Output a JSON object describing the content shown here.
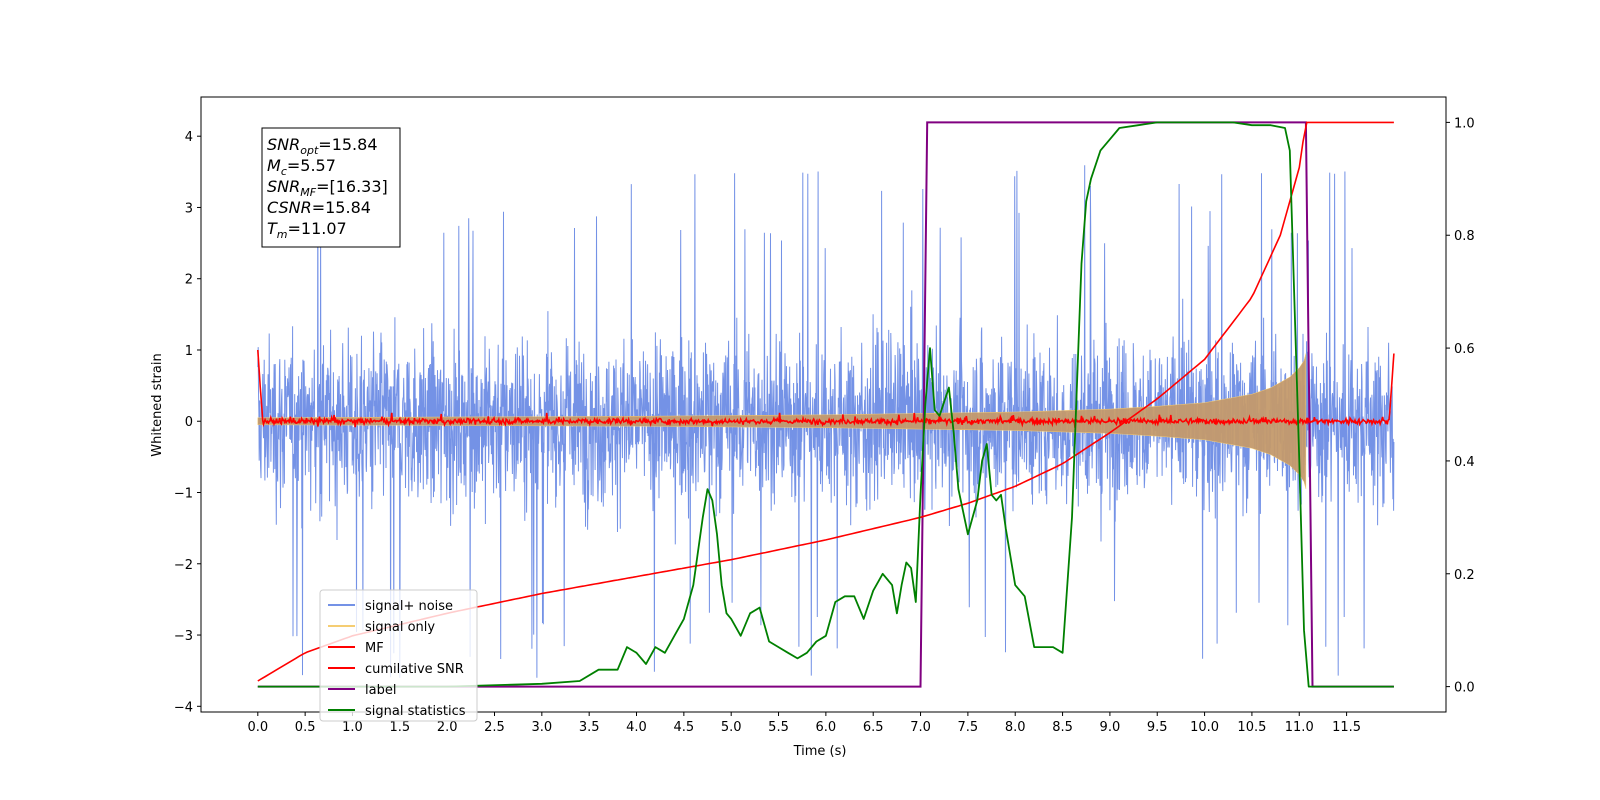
{
  "chart_data": {
    "type": "line",
    "xlabel": "Time (s)",
    "ylabel": "Whitened strain",
    "xlim": [
      -0.6,
      12.55
    ],
    "ylim": [
      -4.08,
      4.55
    ],
    "y2lim": [
      -0.045,
      1.045
    ],
    "x_ticks": [
      0.0,
      0.5,
      1.0,
      1.5,
      2.0,
      2.5,
      3.0,
      3.5,
      4.0,
      4.5,
      5.0,
      5.5,
      6.0,
      6.5,
      7.0,
      7.5,
      8.0,
      8.5,
      9.0,
      9.5,
      10.0,
      10.5,
      11.0,
      11.5
    ],
    "x_tick_labels": [
      "0.0",
      "0.5",
      "1.0",
      "1.5",
      "2.0",
      "2.5",
      "3.0",
      "3.5",
      "4.0",
      "4.5",
      "5.0",
      "5.5",
      "6.0",
      "6.5",
      "7.0",
      "7.5",
      "8.0",
      "8.5",
      "9.0",
      "9.5",
      "10.0",
      "10.5",
      "11.0",
      "11.5"
    ],
    "y_ticks": [
      4,
      3,
      2,
      1,
      0,
      -1,
      -2,
      -3,
      -4
    ],
    "y_tick_labels": [
      "4",
      "3",
      "2",
      "1",
      "0",
      "−1",
      "−2",
      "−3",
      "−4"
    ],
    "y2_ticks": [
      1.0,
      0.8,
      0.6,
      0.4,
      0.2,
      0.0
    ],
    "y2_tick_labels": [
      "1.0",
      "0.8",
      "0.6",
      "0.4",
      "0.2",
      "0.0"
    ],
    "annotation": [
      {
        "base": "SNR",
        "sub": "opt",
        "rest": "=15.84"
      },
      {
        "base": "M",
        "sub": "c",
        "rest": "=5.57"
      },
      {
        "base": "SNR",
        "sub": "MF",
        "rest": "=[16.33]"
      },
      {
        "base": "CSNR",
        "sub": "",
        "rest": "=15.84"
      },
      {
        "base": "T",
        "sub": "m",
        "rest": "=11.07"
      }
    ],
    "legend": [
      {
        "label": "signal+ noise",
        "color": "#7492e6"
      },
      {
        "label": "signal only",
        "color": "#f5cd73"
      },
      {
        "label": "MF",
        "color": "#ff0000"
      },
      {
        "label": "cumilative SNR",
        "color": "#ff0000"
      },
      {
        "label": "label",
        "color": "#800080"
      },
      {
        "label": "signal statistics",
        "color": "#008000"
      }
    ],
    "legend_position": "lower-left",
    "colors": {
      "noise": "#7492e6",
      "signal_fill": "#c49a6c",
      "signal_line": "#f5cd73",
      "mf": "#ff0000",
      "csnr": "#ff0000",
      "label": "#800080",
      "stats": "#008000"
    },
    "series": [
      {
        "name": "signal+ noise",
        "axis": "left",
        "x_range": [
          0.0,
          12.0
        ],
        "envelope_upper": 2.5,
        "envelope_lower": -2.3,
        "spike_max": 4.15,
        "spike_min": -3.6
      },
      {
        "name": "signal only",
        "axis": "left",
        "x": [
          0.0,
          2.0,
          4.0,
          6.0,
          7.0,
          8.0,
          9.0,
          9.5,
          10.0,
          10.5,
          10.7,
          10.9,
          11.0,
          11.05,
          11.07
        ],
        "amplitude": [
          0.05,
          0.06,
          0.07,
          0.09,
          0.11,
          0.13,
          0.17,
          0.21,
          0.26,
          0.38,
          0.47,
          0.62,
          0.75,
          0.85,
          0.95
        ]
      },
      {
        "name": "MF",
        "axis": "left",
        "x_range": [
          0.0,
          12.0
        ],
        "baseline": 0.0,
        "jitter": 0.1,
        "start_value": 1.0,
        "end_value": 0.95
      },
      {
        "name": "cumilative SNR",
        "axis": "right",
        "x": [
          0.0,
          0.5,
          1.0,
          2.0,
          3.0,
          4.0,
          5.0,
          6.0,
          7.0,
          7.5,
          8.0,
          8.5,
          9.0,
          9.5,
          10.0,
          10.5,
          10.8,
          11.0,
          11.07,
          12.0
        ],
        "y": [
          0.01,
          0.06,
          0.09,
          0.13,
          0.165,
          0.195,
          0.225,
          0.26,
          0.3,
          0.325,
          0.355,
          0.395,
          0.45,
          0.51,
          0.58,
          0.69,
          0.8,
          0.92,
          1.0,
          1.0
        ]
      },
      {
        "name": "label",
        "axis": "right",
        "x": [
          0.0,
          7.0,
          7.07,
          11.07,
          11.14,
          12.0
        ],
        "y": [
          0.0,
          0.0,
          1.0,
          1.0,
          0.0,
          0.0
        ]
      },
      {
        "name": "signal statistics",
        "axis": "right",
        "x": [
          0.0,
          1.0,
          2.0,
          3.0,
          3.4,
          3.6,
          3.8,
          3.9,
          4.0,
          4.1,
          4.2,
          4.3,
          4.4,
          4.5,
          4.6,
          4.7,
          4.75,
          4.8,
          4.85,
          4.9,
          4.95,
          5.0,
          5.1,
          5.2,
          5.3,
          5.4,
          5.5,
          5.6,
          5.7,
          5.8,
          5.9,
          6.0,
          6.1,
          6.2,
          6.3,
          6.4,
          6.5,
          6.6,
          6.7,
          6.75,
          6.8,
          6.85,
          6.9,
          6.95,
          7.0,
          7.05,
          7.1,
          7.15,
          7.2,
          7.3,
          7.35,
          7.4,
          7.5,
          7.6,
          7.65,
          7.7,
          7.75,
          7.8,
          7.85,
          7.9,
          8.0,
          8.1,
          8.2,
          8.3,
          8.4,
          8.5,
          8.6,
          8.7,
          8.75,
          8.8,
          8.9,
          9.0,
          9.1,
          9.3,
          9.5,
          9.8,
          10.0,
          10.3,
          10.5,
          10.7,
          10.85,
          10.9,
          11.0,
          11.05,
          11.1,
          11.5,
          12.0
        ],
        "y": [
          0.0,
          0.0,
          0.0,
          0.005,
          0.01,
          0.03,
          0.03,
          0.07,
          0.06,
          0.04,
          0.07,
          0.06,
          0.09,
          0.12,
          0.18,
          0.3,
          0.35,
          0.33,
          0.27,
          0.18,
          0.13,
          0.12,
          0.09,
          0.13,
          0.14,
          0.08,
          0.07,
          0.06,
          0.05,
          0.06,
          0.08,
          0.09,
          0.15,
          0.16,
          0.16,
          0.12,
          0.17,
          0.2,
          0.18,
          0.13,
          0.18,
          0.22,
          0.21,
          0.15,
          0.34,
          0.5,
          0.6,
          0.49,
          0.48,
          0.53,
          0.45,
          0.35,
          0.27,
          0.33,
          0.4,
          0.43,
          0.34,
          0.33,
          0.34,
          0.28,
          0.18,
          0.16,
          0.07,
          0.07,
          0.07,
          0.06,
          0.3,
          0.75,
          0.86,
          0.9,
          0.95,
          0.97,
          0.99,
          0.995,
          1.0,
          1.0,
          1.0,
          1.0,
          0.995,
          0.995,
          0.99,
          0.95,
          0.4,
          0.1,
          0.0,
          0.0,
          0.0
        ]
      }
    ]
  }
}
